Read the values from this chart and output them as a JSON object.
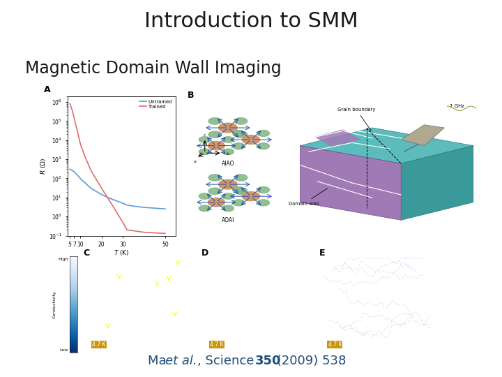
{
  "title": "Introduction to SMM",
  "subtitle": "Magnetic Domain Wall Imaging",
  "title_fontsize": 22,
  "subtitle_fontsize": 17,
  "citation_fontsize": 13,
  "background_color": "#ffffff",
  "title_color": "#1a1a1a",
  "subtitle_color": "#1a1a1a",
  "citation_color": "#1f4e79",
  "fig_width": 7.2,
  "fig_height": 5.4,
  "panel_A": {
    "T": [
      5,
      6,
      7,
      8,
      9,
      10,
      12,
      15,
      20,
      25,
      30,
      32,
      35,
      40,
      50
    ],
    "R_untrained": [
      300,
      260,
      220,
      170,
      130,
      95,
      60,
      30,
      14,
      8,
      5,
      4,
      3.5,
      3,
      2.5
    ],
    "R_trained": [
      800000.0,
      400000.0,
      150000.0,
      50000.0,
      18000.0,
      6000.0,
      1500.0,
      250,
      30,
      4,
      0.5,
      0.2,
      0.18,
      0.15,
      0.13
    ],
    "color_untrained": "#5b9bd5",
    "color_trained": "#e06c6c",
    "ylim": [
      0.1,
      2000000.0
    ],
    "xlim": [
      4,
      55
    ],
    "xticks": [
      5,
      7,
      10,
      20,
      30,
      50
    ]
  },
  "panel_bottom": {
    "bg_color": "#1c3d6e",
    "line_color_solid": "#ffffff",
    "line_color_dashed": "#aaccee",
    "temp_label": "4.7 K",
    "temp_bg": "#c89000"
  },
  "panel_B_colors": {
    "teal": "#5bbcbb",
    "purple": "#a07ab5",
    "teal_dark": "#3a9a9a",
    "white_line": "#ffffff"
  }
}
